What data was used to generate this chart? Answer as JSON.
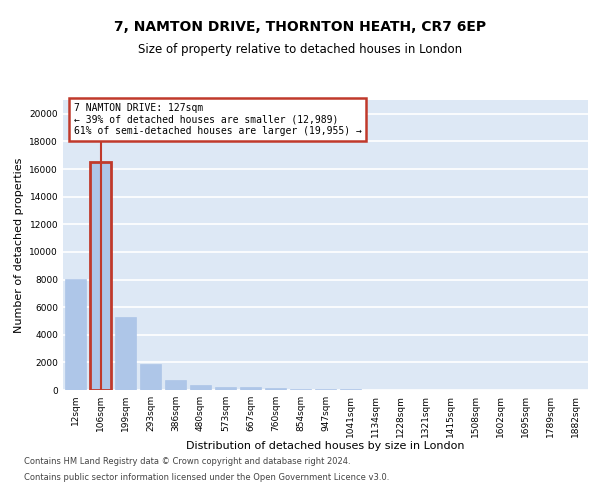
{
  "title": "7, NAMTON DRIVE, THORNTON HEATH, CR7 6EP",
  "subtitle": "Size of property relative to detached houses in London",
  "xlabel": "Distribution of detached houses by size in London",
  "ylabel": "Number of detached properties",
  "bar_labels": [
    "12sqm",
    "106sqm",
    "199sqm",
    "293sqm",
    "386sqm",
    "480sqm",
    "573sqm",
    "667sqm",
    "760sqm",
    "854sqm",
    "947sqm",
    "1041sqm",
    "1134sqm",
    "1228sqm",
    "1321sqm",
    "1415sqm",
    "1508sqm",
    "1602sqm",
    "1695sqm",
    "1789sqm",
    "1882sqm"
  ],
  "bar_values": [
    8050,
    16500,
    5300,
    1850,
    700,
    330,
    200,
    190,
    140,
    90,
    60,
    40,
    30,
    25,
    20,
    18,
    15,
    12,
    10,
    8,
    7
  ],
  "bar_color": "#aec6e8",
  "highlight_bar_index": 1,
  "highlight_bar_color": "#c0392b",
  "vline_color": "#c0392b",
  "annotation_text": "7 NAMTON DRIVE: 127sqm\n← 39% of detached houses are smaller (12,989)\n61% of semi-detached houses are larger (19,955) →",
  "annotation_box_color": "#c0392b",
  "annotation_box_fill": "white",
  "ylim": [
    0,
    21000
  ],
  "yticks": [
    0,
    2000,
    4000,
    6000,
    8000,
    10000,
    12000,
    14000,
    16000,
    18000,
    20000
  ],
  "footer_line1": "Contains HM Land Registry data © Crown copyright and database right 2024.",
  "footer_line2": "Contains public sector information licensed under the Open Government Licence v3.0.",
  "bg_color": "#dde8f5",
  "fig_bg_color": "white",
  "grid_color": "white",
  "title_fontsize": 10,
  "subtitle_fontsize": 8.5,
  "tick_fontsize": 6.5,
  "ylabel_fontsize": 8,
  "xlabel_fontsize": 8,
  "footer_fontsize": 6,
  "annotation_fontsize": 7
}
